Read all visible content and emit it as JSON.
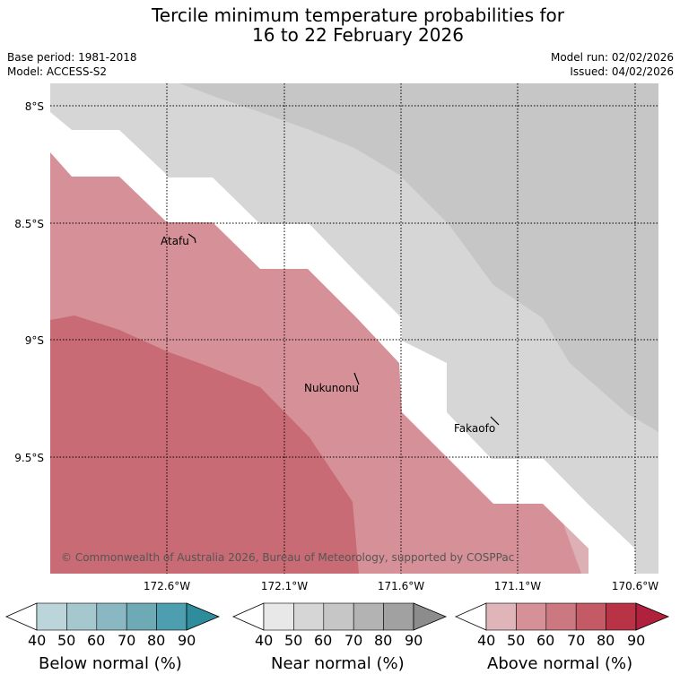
{
  "title": {
    "line1": "Tercile minimum temperature probabilities for",
    "line2": "16 to 22 February 2026"
  },
  "meta": {
    "base_period": "Base period: 1981-2018",
    "model": "Model: ACCESS-S2",
    "model_run": "Model run: 02/02/2026",
    "issued": "Issued: 04/02/2026"
  },
  "map": {
    "lat_labels": [
      "8°S",
      "8.5°S",
      "9°S",
      "9.5°S"
    ],
    "lon_labels": [
      "172.6°W",
      "172.1°W",
      "171.6°W",
      "171.1°W",
      "170.6°W"
    ],
    "places": [
      "Atafu",
      "Nukunonu",
      "Fakaofo"
    ],
    "copyright": "© Commonwealth of Australia 2026, Bureau of Meteorology, supported by COSPPac",
    "colors": {
      "near_40": "#d6d6d6",
      "near_60": "#c6c6c6",
      "above_50": "#d69097",
      "above_60": "#c96b74",
      "above_40": "#dcb0b4"
    }
  },
  "legends": [
    {
      "name": "below",
      "title": "Below normal (%)",
      "ticks": [
        "40",
        "50",
        "60",
        "70",
        "80",
        "90"
      ],
      "colors": [
        "#ffffff",
        "#bcd5db",
        "#a5c8cf",
        "#8ab8c2",
        "#6eaab6",
        "#4d9eae",
        "#2e8c9c"
      ]
    },
    {
      "name": "near",
      "title": "Near normal (%)",
      "ticks": [
        "40",
        "50",
        "60",
        "70",
        "80",
        "90"
      ],
      "colors": [
        "#ffffff",
        "#e8e8e8",
        "#d6d6d6",
        "#c6c6c6",
        "#b3b3b3",
        "#a1a1a1",
        "#8c8c8c"
      ]
    },
    {
      "name": "above",
      "title": "Above normal (%)",
      "ticks": [
        "40",
        "50",
        "60",
        "70",
        "80",
        "90"
      ],
      "colors": [
        "#ffffff",
        "#e0b5b9",
        "#d69097",
        "#cc7880",
        "#c45a66",
        "#b93347",
        "#b0213d"
      ]
    }
  ]
}
